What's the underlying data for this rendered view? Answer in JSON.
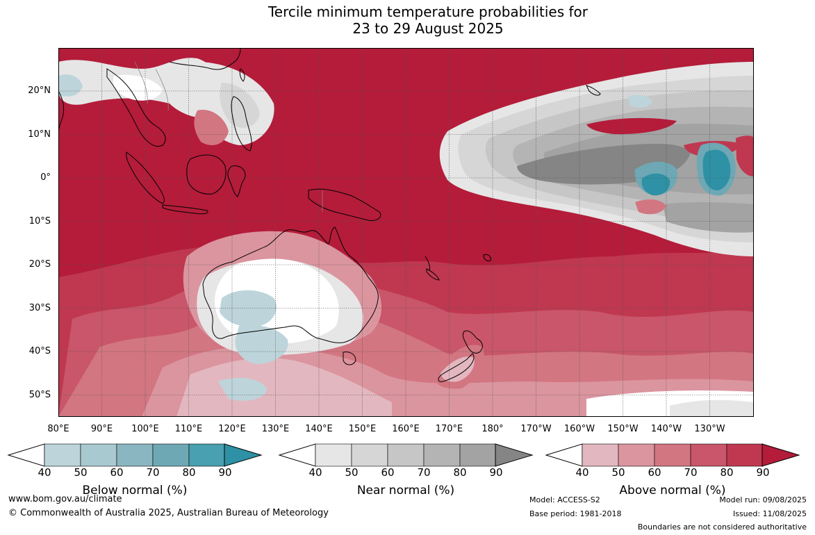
{
  "title": {
    "line1": "Tercile minimum temperature probabilities for",
    "line2": "23 to 29 August 2025"
  },
  "colors": {
    "above_90": "#b41c3a",
    "above_80": "#bf3850",
    "above_70": "#c9566a",
    "above_60": "#d27682",
    "above_50": "#db959f",
    "above_40": "#e3b7bf",
    "near_40": "#e6e6e6",
    "near_50": "#d6d6d6",
    "near_60": "#c6c6c6",
    "near_70": "#b4b4b4",
    "near_80": "#a3a3a3",
    "near_90": "#858585",
    "below_40": "#bdd4db",
    "below_50": "#a8c9cf",
    "below_60": "#8ab6c1",
    "below_70": "#6ea8b5",
    "below_80": "#48a0b0",
    "below_90": "#2e91a5"
  },
  "lat_labels": [
    "20°N",
    "10°N",
    "0°",
    "10°S",
    "20°S",
    "30°S",
    "40°S",
    "50°S"
  ],
  "lon_labels": [
    "80°E",
    "90°E",
    "100°E",
    "110°E",
    "120°E",
    "130°E",
    "140°E",
    "150°E",
    "160°E",
    "170°E",
    "180°",
    "170°W",
    "160°W",
    "150°W",
    "140°W",
    "130°W"
  ],
  "colorbars": [
    {
      "label": "Below normal (%)",
      "ticks": [
        "40",
        "50",
        "60",
        "70",
        "80",
        "90"
      ]
    },
    {
      "label": "Near normal (%)",
      "ticks": [
        "40",
        "50",
        "60",
        "70",
        "80",
        "90"
      ]
    },
    {
      "label": "Above normal (%)",
      "ticks": [
        "40",
        "50",
        "60",
        "70",
        "80",
        "90"
      ]
    }
  ],
  "footer": {
    "website": "www.bom.gov.au/climate",
    "copyright": "© Commonwealth of Australia 2025, Australian Bureau of Meteorology",
    "model": "Model: ACCESS-S2",
    "base_period": "Base period: 1981-2018",
    "model_run": "Model run: 09/08/2025",
    "issued": "Issued: 11/08/2025",
    "disclaimer": "Boundaries are not considered authoritative"
  }
}
